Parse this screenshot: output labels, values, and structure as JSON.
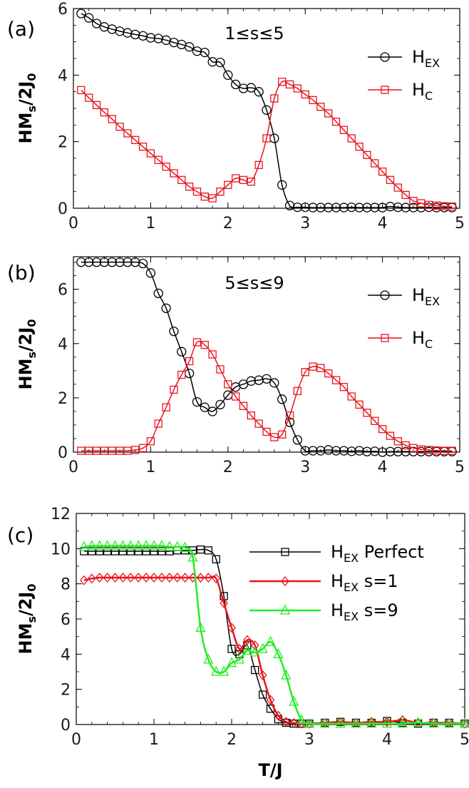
{
  "chart_data": [
    {
      "type": "line",
      "panel_label": "(a)",
      "annotation": "1≤s≤5",
      "ylabel_main": "HM",
      "ylabel_sub": "s",
      "ylabel_rest": "/2J",
      "ylabel_sub2": "0",
      "xlabel": "",
      "xlim": [
        0,
        5
      ],
      "ylim": [
        0,
        6
      ],
      "xticks": [
        "0",
        "1",
        "2",
        "3",
        "4",
        "5"
      ],
      "yticks": [
        "0",
        "2",
        "4",
        "6"
      ],
      "legend_position": "top-right",
      "series": [
        {
          "name_main": "H",
          "name_sub": "EX",
          "name_rest": "",
          "color": "#000000",
          "marker": "circle",
          "line_width": 1.5,
          "x": [
            0.1,
            0.2,
            0.3,
            0.4,
            0.5,
            0.6,
            0.7,
            0.8,
            0.9,
            1.0,
            1.1,
            1.2,
            1.3,
            1.4,
            1.5,
            1.6,
            1.7,
            1.8,
            1.9,
            2.0,
            2.1,
            2.2,
            2.3,
            2.4,
            2.5,
            2.6,
            2.7,
            2.8,
            2.9,
            3.0,
            3.1,
            3.2,
            3.3,
            3.4,
            3.5,
            3.6,
            3.7,
            3.8,
            3.9,
            4.0,
            4.1,
            4.2,
            4.3,
            4.4,
            4.5,
            4.6,
            4.7,
            4.8,
            4.9
          ],
          "y": [
            5.85,
            5.72,
            5.55,
            5.45,
            5.38,
            5.32,
            5.27,
            5.22,
            5.18,
            5.12,
            5.1,
            5.05,
            4.98,
            4.92,
            4.85,
            4.72,
            4.68,
            4.4,
            4.38,
            4.0,
            3.72,
            3.6,
            3.62,
            3.5,
            2.95,
            2.1,
            0.7,
            0.08,
            0.03,
            0.03,
            0.02,
            0.02,
            0.02,
            0.02,
            0.02,
            0.03,
            0.02,
            0.02,
            0.02,
            0.02,
            0.05,
            0.03,
            0.02,
            0.02,
            0.02,
            0.03,
            0.02,
            0.02,
            0.02
          ]
        },
        {
          "name_main": "H",
          "name_sub": "C",
          "name_rest": "",
          "color": "#e8141e",
          "marker": "square",
          "line_width": 1.5,
          "x": [
            0.1,
            0.2,
            0.3,
            0.4,
            0.5,
            0.6,
            0.7,
            0.8,
            0.9,
            1.0,
            1.1,
            1.2,
            1.3,
            1.4,
            1.5,
            1.6,
            1.7,
            1.8,
            1.9,
            2.0,
            2.1,
            2.2,
            2.3,
            2.4,
            2.5,
            2.6,
            2.7,
            2.8,
            2.9,
            3.0,
            3.1,
            3.2,
            3.3,
            3.4,
            3.5,
            3.6,
            3.7,
            3.8,
            3.9,
            4.0,
            4.1,
            4.2,
            4.3,
            4.4,
            4.5,
            4.6,
            4.7,
            4.8,
            4.9
          ],
          "y": [
            3.55,
            3.32,
            3.1,
            2.88,
            2.68,
            2.45,
            2.25,
            2.05,
            1.85,
            1.65,
            1.45,
            1.25,
            1.05,
            0.85,
            0.65,
            0.5,
            0.35,
            0.3,
            0.5,
            0.7,
            0.9,
            0.85,
            0.8,
            1.3,
            2.1,
            3.3,
            3.8,
            3.72,
            3.6,
            3.42,
            3.25,
            3.05,
            2.85,
            2.6,
            2.35,
            2.1,
            1.85,
            1.6,
            1.35,
            1.1,
            0.85,
            0.62,
            0.4,
            0.22,
            0.15,
            0.1,
            0.08,
            0.06,
            0.05
          ]
        }
      ]
    },
    {
      "type": "line",
      "panel_label": "(b)",
      "annotation": "5≤s≤9",
      "ylabel_main": "HM",
      "ylabel_sub": "s",
      "ylabel_rest": "/2J",
      "ylabel_sub2": "0",
      "xlabel": "",
      "xlim": [
        0,
        5
      ],
      "ylim": [
        0,
        7.2
      ],
      "xticks": [
        "0",
        "1",
        "2",
        "3",
        "4",
        "5"
      ],
      "yticks": [
        "0",
        "2",
        "4",
        "6"
      ],
      "legend_position": "top-right",
      "series": [
        {
          "name_main": "H",
          "name_sub": "EX",
          "name_rest": "",
          "color": "#000000",
          "marker": "circle",
          "line_width": 1.5,
          "x": [
            0.1,
            0.2,
            0.3,
            0.4,
            0.5,
            0.6,
            0.7,
            0.8,
            0.9,
            1.0,
            1.1,
            1.2,
            1.3,
            1.4,
            1.5,
            1.6,
            1.7,
            1.8,
            1.9,
            2.0,
            2.1,
            2.2,
            2.3,
            2.4,
            2.5,
            2.6,
            2.7,
            2.8,
            2.9,
            3.0,
            3.1,
            3.2,
            3.3,
            3.4,
            3.5,
            3.6,
            3.7,
            3.8,
            3.9,
            4.0,
            4.1,
            4.2,
            4.3,
            4.4,
            4.5,
            4.6,
            4.7,
            4.8,
            4.9
          ],
          "y": [
            7.0,
            7.0,
            7.0,
            7.0,
            7.0,
            7.0,
            7.0,
            7.0,
            6.95,
            6.6,
            5.85,
            5.3,
            4.45,
            3.7,
            2.9,
            1.85,
            1.65,
            1.5,
            1.75,
            2.1,
            2.4,
            2.5,
            2.62,
            2.65,
            2.7,
            2.55,
            1.95,
            1.1,
            0.45,
            0.05,
            0.05,
            0.05,
            0.08,
            0.05,
            0.05,
            0.03,
            0.05,
            0.02,
            0.03,
            0.0,
            0.02,
            0.02,
            0.02,
            0.02,
            0.02,
            0.02,
            0.02,
            0.02,
            0.02
          ]
        },
        {
          "name_main": "H",
          "name_sub": "C",
          "name_rest": "",
          "color": "#e8141e",
          "marker": "square",
          "line_width": 1.5,
          "x": [
            0.1,
            0.2,
            0.3,
            0.4,
            0.5,
            0.6,
            0.7,
            0.8,
            0.9,
            1.0,
            1.1,
            1.2,
            1.3,
            1.4,
            1.5,
            1.6,
            1.7,
            1.8,
            1.9,
            2.0,
            2.1,
            2.2,
            2.3,
            2.4,
            2.5,
            2.6,
            2.7,
            2.8,
            2.9,
            3.0,
            3.1,
            3.2,
            3.3,
            3.4,
            3.5,
            3.6,
            3.7,
            3.8,
            3.9,
            4.0,
            4.1,
            4.2,
            4.3,
            4.4,
            4.5,
            4.6,
            4.7,
            4.8,
            4.9
          ],
          "y": [
            0.05,
            0.05,
            0.05,
            0.05,
            0.05,
            0.05,
            0.05,
            0.08,
            0.15,
            0.4,
            1.05,
            1.65,
            2.3,
            2.85,
            3.35,
            4.05,
            3.95,
            3.6,
            3.05,
            2.5,
            2.05,
            1.7,
            1.35,
            1.05,
            0.75,
            0.55,
            0.65,
            1.35,
            2.25,
            2.95,
            3.15,
            3.1,
            2.9,
            2.65,
            2.4,
            2.05,
            1.75,
            1.45,
            1.15,
            0.85,
            0.6,
            0.4,
            0.25,
            0.15,
            0.1,
            0.08,
            0.06,
            0.05,
            0.05
          ]
        }
      ]
    },
    {
      "type": "line",
      "panel_label": "(c)",
      "annotation": "",
      "ylabel_main": "HM",
      "ylabel_sub": "s",
      "ylabel_rest": "/2J",
      "ylabel_sub2": "0",
      "xlabel": "T/J",
      "xlim": [
        0,
        5
      ],
      "ylim": [
        0,
        12
      ],
      "xticks": [
        "0",
        "1",
        "2",
        "3",
        "4",
        "5"
      ],
      "yticks": [
        "0",
        "2",
        "4",
        "6",
        "8",
        "10",
        "12"
      ],
      "legend_position": "top-right",
      "series": [
        {
          "name_main": "H",
          "name_sub": "EX",
          "name_rest": " Perfect",
          "color": "#000000",
          "marker": "square",
          "line_width": 1.5,
          "x": [
            0.1,
            0.2,
            0.3,
            0.4,
            0.5,
            0.6,
            0.7,
            0.8,
            0.9,
            1.0,
            1.1,
            1.2,
            1.3,
            1.4,
            1.5,
            1.6,
            1.7,
            1.8,
            1.9,
            2.0,
            2.1,
            2.2,
            2.3,
            2.4,
            2.5,
            2.6,
            2.7,
            2.8,
            2.9,
            3.0,
            3.2,
            3.4,
            3.6,
            3.8,
            4.0,
            4.2,
            4.4,
            4.6,
            4.8,
            5.0
          ],
          "y": [
            9.85,
            9.85,
            9.85,
            9.85,
            9.85,
            9.85,
            9.85,
            9.85,
            9.85,
            9.85,
            9.85,
            9.85,
            9.9,
            9.9,
            9.9,
            9.95,
            9.9,
            9.4,
            7.3,
            4.3,
            4.0,
            4.5,
            3.1,
            1.7,
            0.9,
            0.3,
            0.1,
            0.05,
            0.05,
            0.05,
            0.1,
            0.15,
            0.1,
            0.1,
            0.2,
            0.1,
            0.05,
            0.1,
            0.1,
            0.05
          ]
        },
        {
          "name_main": "H",
          "name_sub": "EX",
          "name_rest": " s=1",
          "color": "#e8141e",
          "marker": "diamond",
          "line_width": 2.5,
          "x": [
            0.1,
            0.2,
            0.3,
            0.4,
            0.5,
            0.6,
            0.7,
            0.8,
            0.9,
            1.0,
            1.1,
            1.2,
            1.3,
            1.4,
            1.5,
            1.6,
            1.7,
            1.8,
            1.9,
            2.0,
            2.1,
            2.2,
            2.3,
            2.4,
            2.5,
            2.6,
            2.7,
            2.8,
            2.9,
            3.0,
            3.2,
            3.4,
            3.6,
            3.8,
            4.0,
            4.2,
            4.4,
            4.6,
            4.8,
            5.0
          ],
          "y": [
            8.2,
            8.3,
            8.35,
            8.35,
            8.35,
            8.35,
            8.35,
            8.35,
            8.35,
            8.35,
            8.35,
            8.35,
            8.35,
            8.35,
            8.35,
            8.35,
            8.35,
            8.3,
            6.9,
            5.5,
            4.3,
            4.8,
            4.5,
            2.8,
            1.4,
            0.5,
            0.15,
            0.08,
            0.05,
            0.05,
            0.1,
            0.15,
            0.1,
            0.15,
            0.15,
            0.25,
            0.1,
            0.1,
            0.1,
            0.05
          ]
        },
        {
          "name_main": "H",
          "name_sub": "EX",
          "name_rest": " s=9",
          "color": "#22ee22",
          "marker": "triangle",
          "line_width": 2.5,
          "x": [
            0.1,
            0.2,
            0.3,
            0.4,
            0.5,
            0.6,
            0.7,
            0.8,
            0.9,
            1.0,
            1.1,
            1.2,
            1.3,
            1.4,
            1.5,
            1.6,
            1.7,
            1.8,
            1.9,
            2.0,
            2.1,
            2.2,
            2.3,
            2.4,
            2.5,
            2.6,
            2.7,
            2.8,
            2.9,
            3.0,
            3.2,
            3.4,
            3.6,
            3.8,
            4.0,
            4.2,
            4.4,
            4.6,
            4.8,
            5.0
          ],
          "y": [
            10.1,
            10.15,
            10.15,
            10.15,
            10.15,
            10.15,
            10.15,
            10.15,
            10.15,
            10.15,
            10.15,
            10.1,
            10.1,
            10.05,
            9.5,
            5.5,
            3.7,
            3.0,
            3.0,
            3.5,
            3.7,
            4.2,
            4.1,
            4.3,
            4.7,
            4.0,
            2.8,
            1.3,
            0.25,
            0.05,
            0.05,
            0.05,
            0.05,
            0.05,
            0.05,
            0.05,
            0.1,
            0.05,
            0.05,
            0.05
          ]
        }
      ]
    }
  ]
}
